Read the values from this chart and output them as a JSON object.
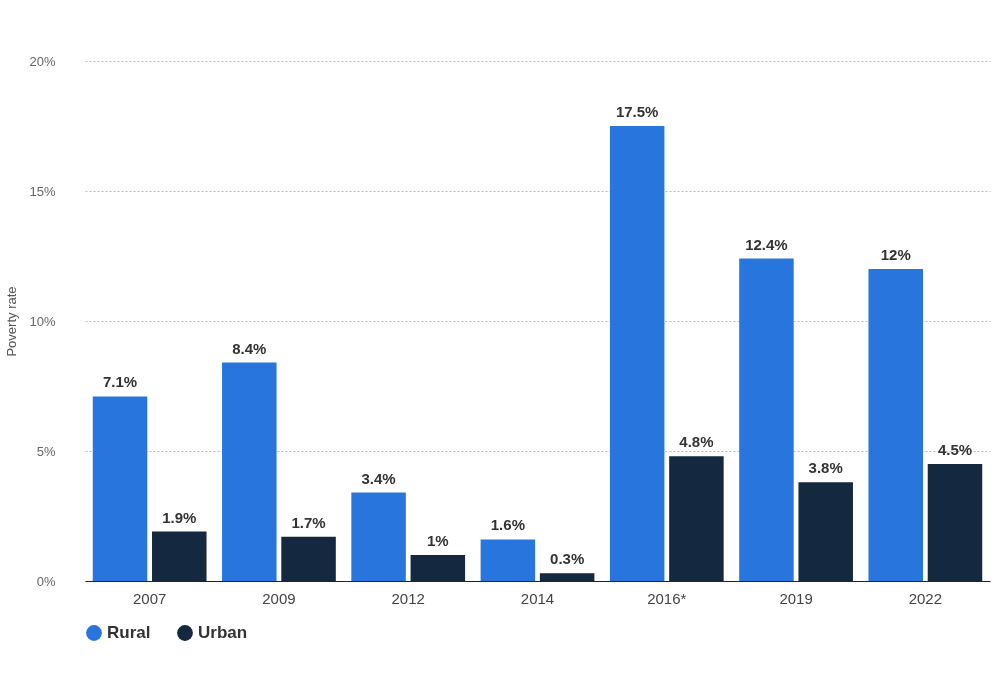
{
  "chart_data": {
    "type": "bar",
    "ylabel": "Poverty rate",
    "categories": [
      "2007",
      "2009",
      "2012",
      "2014",
      "2016*",
      "2019",
      "2022"
    ],
    "series": [
      {
        "name": "Rural",
        "color": "#2876dd",
        "values": [
          7.1,
          8.4,
          3.4,
          1.6,
          17.5,
          12.4,
          12
        ],
        "value_labels": [
          "7.1%",
          "8.4%",
          "3.4%",
          "1.6%",
          "17.5%",
          "12.4%",
          "12%"
        ]
      },
      {
        "name": "Urban",
        "color": "#14283f",
        "values": [
          1.9,
          1.7,
          1,
          0.3,
          4.8,
          3.8,
          4.5
        ],
        "value_labels": [
          "1.9%",
          "1.7%",
          "1%",
          "0.3%",
          "4.8%",
          "3.8%",
          "4.5%"
        ]
      }
    ],
    "ylim": [
      0,
      20
    ],
    "yticks": [
      {
        "value": 0,
        "label": "0%"
      },
      {
        "value": 5,
        "label": "5%"
      },
      {
        "value": 10,
        "label": "10%"
      },
      {
        "value": 15,
        "label": "15%"
      },
      {
        "value": 20,
        "label": "20%"
      }
    ],
    "grid": "y",
    "legend": "bottom"
  }
}
